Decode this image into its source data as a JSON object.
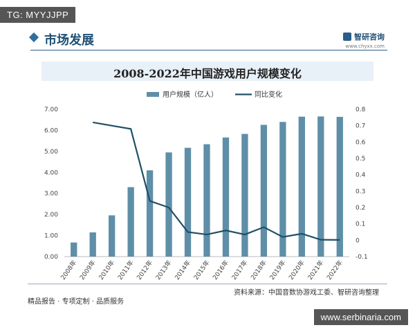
{
  "watermark_tl": "TG: MYYJJPP",
  "watermark_br": "www.serbinaria.com",
  "header": {
    "section_title": "市场发展",
    "brand_name": "智研咨询",
    "brand_url": "www.chyxx.com"
  },
  "footer": {
    "tagline": "精品报告 · 专项定制 · 品质服务",
    "source": "资料来源：中国音数协游戏工委、智研咨询整理"
  },
  "colors": {
    "bar": "#5f8fa8",
    "line": "#1f4f66",
    "header_accent": "#2b5e88"
  },
  "chart_data": {
    "type": "bar",
    "title": "2008-2022年中国游戏用户规模变化",
    "categories": [
      "2008年",
      "2009年",
      "2010年",
      "2011年",
      "2012年",
      "2013年",
      "2014年",
      "2015年",
      "2016年",
      "2017年",
      "2018年",
      "2019年",
      "2020年",
      "2021年",
      "2022年"
    ],
    "series": [
      {
        "name": "用户规模（亿人）",
        "type": "bar",
        "axis": "left",
        "values": [
          0.67,
          1.15,
          1.96,
          3.3,
          4.1,
          4.95,
          5.17,
          5.34,
          5.66,
          5.83,
          6.26,
          6.4,
          6.65,
          6.66,
          6.64
        ]
      },
      {
        "name": "同比变化",
        "type": "line",
        "axis": "right",
        "values": [
          null,
          0.72,
          0.7,
          0.68,
          0.24,
          0.2,
          0.05,
          0.035,
          0.06,
          0.035,
          0.08,
          0.02,
          0.04,
          0.003,
          0.002
        ]
      }
    ],
    "y_left": {
      "ylim": [
        0,
        7
      ],
      "ticks": [
        "0.00",
        "1.00",
        "2.00",
        "3.00",
        "4.00",
        "5.00",
        "6.00",
        "7.00"
      ]
    },
    "y_right": {
      "ylim": [
        -0.1,
        0.8
      ],
      "ticks": [
        "-0.1",
        "0",
        "0.1",
        "0.2",
        "0.3",
        "0.4",
        "0.5",
        "0.6",
        "0.7",
        "0.8"
      ]
    },
    "legend_position": "top-center"
  }
}
